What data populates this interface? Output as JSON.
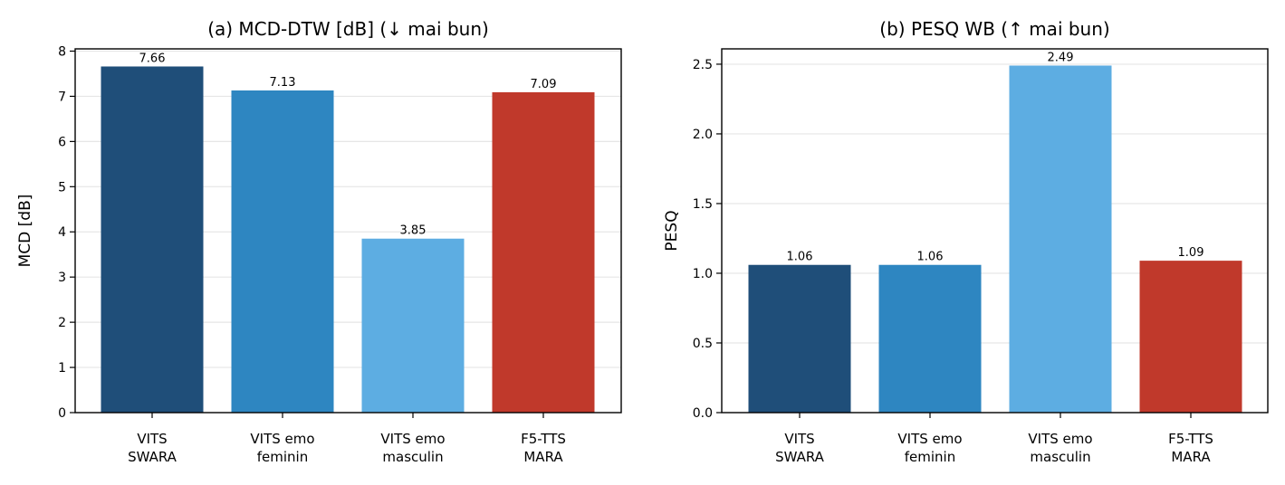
{
  "chart_data": [
    {
      "type": "bar",
      "title": "(a) MCD-DTW [dB] (↓ mai bun)",
      "xlabel": "",
      "ylabel": "MCD [dB]",
      "categories": [
        [
          "VITS",
          "SWARA"
        ],
        [
          "VITS emo",
          "feminin"
        ],
        [
          "VITS emo",
          "masculin"
        ],
        [
          "F5-TTS",
          "MARA"
        ]
      ],
      "values": [
        7.66,
        7.13,
        3.85,
        7.09
      ],
      "data_labels": [
        "7.66",
        "7.13",
        "3.85",
        "7.09"
      ],
      "colors": [
        "#1f4e79",
        "#2e86c1",
        "#5dade2",
        "#c0392b"
      ],
      "ylim": [
        0,
        8.05
      ],
      "yticks": [
        0,
        1,
        2,
        3,
        4,
        5,
        6,
        7,
        8
      ],
      "ytick_labels": [
        "0",
        "1",
        "2",
        "3",
        "4",
        "5",
        "6",
        "7",
        "8"
      ],
      "grid": "horizontal",
      "legend": "none"
    },
    {
      "type": "bar",
      "title": "(b) PESQ WB (↑ mai bun)",
      "xlabel": "",
      "ylabel": "PESQ",
      "categories": [
        [
          "VITS",
          "SWARA"
        ],
        [
          "VITS emo",
          "feminin"
        ],
        [
          "VITS emo",
          "masculin"
        ],
        [
          "F5-TTS",
          "MARA"
        ]
      ],
      "values": [
        1.06,
        1.06,
        2.49,
        1.09
      ],
      "data_labels": [
        "1.06",
        "1.06",
        "2.49",
        "1.09"
      ],
      "colors": [
        "#1f4e79",
        "#2e86c1",
        "#5dade2",
        "#c0392b"
      ],
      "ylim": [
        0,
        2.61
      ],
      "yticks": [
        0,
        0.5,
        1.0,
        1.5,
        2.0,
        2.5
      ],
      "ytick_labels": [
        "0.0",
        "0.5",
        "1.0",
        "1.5",
        "2.0",
        "2.5"
      ],
      "grid": "horizontal",
      "legend": "none"
    }
  ]
}
